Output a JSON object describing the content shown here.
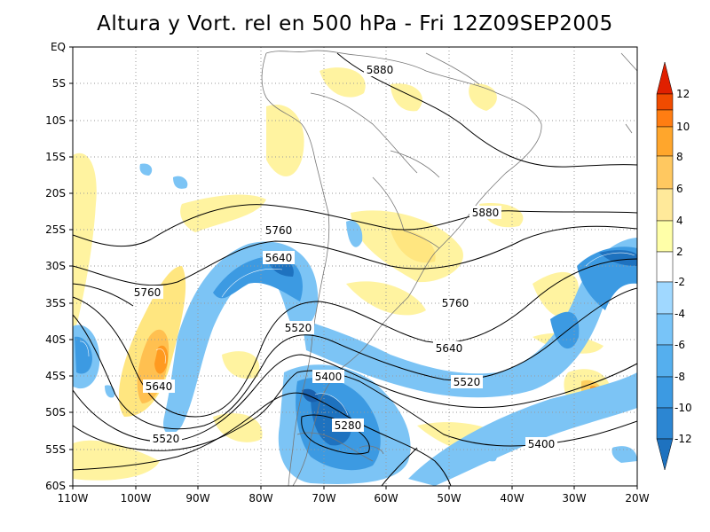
{
  "title": "Altura y Vort. rel en 500 hPa - Fri 12Z09SEP2005",
  "lat_ticks": [
    "EQ",
    "5S",
    "10S",
    "15S",
    "20S",
    "25S",
    "30S",
    "35S",
    "40S",
    "45S",
    "50S",
    "55S",
    "60S"
  ],
  "lon_ticks": [
    "110W",
    "100W",
    "90W",
    "80W",
    "70W",
    "60W",
    "50W",
    "40W",
    "30W",
    "20W"
  ],
  "map": {
    "lon_range": [
      -110,
      -20
    ],
    "lat_range": [
      -60,
      0
    ],
    "grid": "dotted",
    "background": "#ffffff"
  },
  "contours": {
    "variable": "500 hPa height",
    "labels": [
      "5880",
      "5880",
      "5760",
      "5760",
      "5760",
      "5640",
      "5640",
      "5640",
      "5520",
      "5520",
      "5520",
      "5400",
      "5400",
      "5280"
    ]
  },
  "colorbar": {
    "labels": [
      "12",
      "10",
      "8",
      "6",
      "4",
      "2",
      "-2",
      "-4",
      "-6",
      "-8",
      "-10",
      "-12"
    ],
    "colors_pos": [
      "#ffffa8",
      "#ffe99a",
      "#ffc860",
      "#ffa62c",
      "#ff7d12",
      "#f04b00",
      "#e02000"
    ],
    "colors_neg": [
      "#a0d8ff",
      "#78c4f8",
      "#55afee",
      "#3c9ae2",
      "#2c86d2",
      "#1e72bf",
      "#1a60ad"
    ]
  }
}
